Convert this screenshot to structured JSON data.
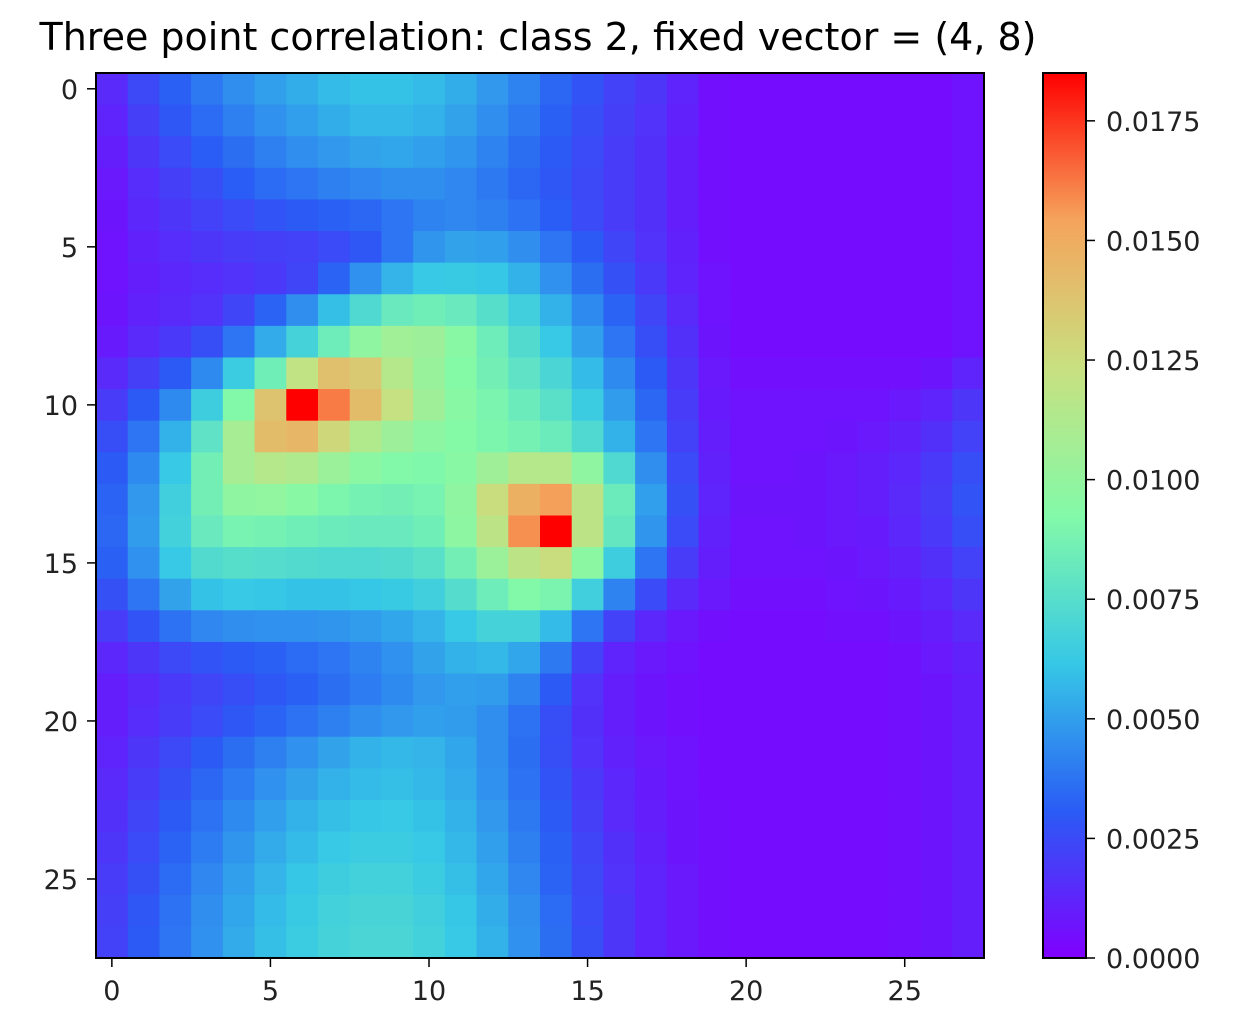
{
  "chart_data": {
    "type": "heatmap",
    "title": "Three point correlation: class 2, fixed vector = (4, 8)",
    "xlabel": "",
    "ylabel": "",
    "rows": 28,
    "cols": 28,
    "xlim": [
      -0.5,
      27.5
    ],
    "ylim": [
      27.5,
      -0.5
    ],
    "x_ticks": [
      0,
      5,
      10,
      15,
      20,
      25
    ],
    "y_ticks": [
      0,
      5,
      10,
      15,
      20,
      25
    ],
    "colormap": "rainbow",
    "colormap_stops": [
      "#8000ff",
      "#2a5cf5",
      "#36c8e6",
      "#83faa8",
      "#c8e080",
      "#f5a45c",
      "#ff0000"
    ],
    "value_range": [
      0,
      0.0185
    ],
    "colorbar": {
      "ticks": [
        0.0,
        0.0025,
        0.005,
        0.0075,
        0.01,
        0.0125,
        0.015,
        0.0175
      ],
      "tick_labels": [
        "0.0000",
        "0.0025",
        "0.0050",
        "0.0075",
        "0.0100",
        "0.0125",
        "0.0150",
        "0.0175"
      ]
    },
    "values": [
      [
        0.0014,
        0.0024,
        0.0032,
        0.0039,
        0.0045,
        0.005,
        0.0054,
        0.0058,
        0.006,
        0.006,
        0.0058,
        0.0054,
        0.0048,
        0.0042,
        0.0034,
        0.0028,
        0.0022,
        0.0018,
        0.0012,
        0.0005,
        0.0004,
        0.0004,
        0.0004,
        0.0004,
        0.0004,
        0.0004,
        0.0004,
        0.0006
      ],
      [
        0.0012,
        0.0021,
        0.0029,
        0.0035,
        0.0041,
        0.0046,
        0.005,
        0.0054,
        0.0057,
        0.0057,
        0.0055,
        0.0051,
        0.0045,
        0.0039,
        0.0032,
        0.0026,
        0.0021,
        0.0017,
        0.0011,
        0.0005,
        0.0004,
        0.0004,
        0.0004,
        0.0004,
        0.0004,
        0.0004,
        0.0004,
        0.0006
      ],
      [
        0.001,
        0.0018,
        0.0025,
        0.0031,
        0.0036,
        0.0041,
        0.0045,
        0.0048,
        0.0051,
        0.0052,
        0.005,
        0.0047,
        0.0042,
        0.0036,
        0.003,
        0.0025,
        0.002,
        0.0016,
        0.001,
        0.0005,
        0.0004,
        0.0004,
        0.0004,
        0.0004,
        0.0004,
        0.0004,
        0.0004,
        0.0006
      ],
      [
        0.0008,
        0.0015,
        0.0021,
        0.0026,
        0.0031,
        0.0035,
        0.0038,
        0.0041,
        0.0043,
        0.0045,
        0.0045,
        0.0043,
        0.0039,
        0.0034,
        0.0029,
        0.0024,
        0.002,
        0.0016,
        0.001,
        0.0005,
        0.0004,
        0.0004,
        0.0004,
        0.0004,
        0.0004,
        0.0004,
        0.0004,
        0.0006
      ],
      [
        0.0007,
        0.0013,
        0.0018,
        0.0022,
        0.0025,
        0.0028,
        0.003,
        0.0032,
        0.0034,
        0.0038,
        0.0042,
        0.0043,
        0.0041,
        0.0037,
        0.0031,
        0.0025,
        0.002,
        0.0016,
        0.001,
        0.0005,
        0.0004,
        0.0004,
        0.0004,
        0.0004,
        0.0004,
        0.0004,
        0.0004,
        0.0006
      ],
      [
        0.0006,
        0.0011,
        0.0015,
        0.0018,
        0.002,
        0.0021,
        0.0022,
        0.0025,
        0.0029,
        0.0038,
        0.0047,
        0.0051,
        0.005,
        0.0045,
        0.0038,
        0.003,
        0.0023,
        0.0017,
        0.0011,
        0.0005,
        0.0004,
        0.0004,
        0.0004,
        0.0004,
        0.0004,
        0.0004,
        0.0004,
        0.0006
      ],
      [
        0.0006,
        0.001,
        0.0013,
        0.0015,
        0.0017,
        0.0019,
        0.0023,
        0.0033,
        0.0046,
        0.0056,
        0.0062,
        0.0063,
        0.0061,
        0.0055,
        0.0046,
        0.0036,
        0.0027,
        0.0019,
        0.0012,
        0.0006,
        0.0004,
        0.0004,
        0.0004,
        0.0004,
        0.0004,
        0.0004,
        0.0004,
        0.0006
      ],
      [
        0.0007,
        0.0011,
        0.0014,
        0.0017,
        0.0023,
        0.0033,
        0.0045,
        0.0059,
        0.0072,
        0.0082,
        0.0085,
        0.0082,
        0.0075,
        0.0066,
        0.0055,
        0.0044,
        0.0033,
        0.0023,
        0.0014,
        0.0006,
        0.0004,
        0.0004,
        0.0004,
        0.0004,
        0.0004,
        0.0004,
        0.0004,
        0.0006
      ],
      [
        0.0009,
        0.0014,
        0.0019,
        0.0026,
        0.0038,
        0.0053,
        0.0068,
        0.0084,
        0.0098,
        0.0106,
        0.0104,
        0.0095,
        0.0084,
        0.0073,
        0.0062,
        0.005,
        0.0038,
        0.0026,
        0.0016,
        0.0007,
        0.0004,
        0.0004,
        0.0004,
        0.0004,
        0.0004,
        0.0004,
        0.0004,
        0.0006
      ],
      [
        0.0014,
        0.0021,
        0.003,
        0.0044,
        0.0064,
        0.0085,
        0.012,
        0.014,
        0.0135,
        0.0115,
        0.0102,
        0.0093,
        0.0086,
        0.0078,
        0.007,
        0.0058,
        0.0044,
        0.003,
        0.0018,
        0.0008,
        0.0005,
        0.0005,
        0.0005,
        0.0005,
        0.0005,
        0.0005,
        0.0007,
        0.0012
      ],
      [
        0.002,
        0.003,
        0.0044,
        0.0065,
        0.0092,
        0.0138,
        0.0185,
        0.0162,
        0.0142,
        0.0122,
        0.0105,
        0.0095,
        0.0089,
        0.0083,
        0.0076,
        0.0064,
        0.0049,
        0.0034,
        0.002,
        0.0009,
        0.0006,
        0.0006,
        0.0006,
        0.0006,
        0.0006,
        0.0008,
        0.0012,
        0.0018
      ],
      [
        0.0026,
        0.0038,
        0.0055,
        0.0078,
        0.0108,
        0.0142,
        0.0145,
        0.0128,
        0.0113,
        0.0104,
        0.0097,
        0.0093,
        0.009,
        0.0087,
        0.0083,
        0.0072,
        0.0055,
        0.0038,
        0.0022,
        0.001,
        0.0006,
        0.0006,
        0.0006,
        0.0007,
        0.0008,
        0.0011,
        0.0016,
        0.0022
      ],
      [
        0.003,
        0.0044,
        0.0062,
        0.0086,
        0.0108,
        0.0115,
        0.0112,
        0.0103,
        0.0096,
        0.0092,
        0.0091,
        0.0095,
        0.0105,
        0.0115,
        0.0115,
        0.0098,
        0.0072,
        0.0045,
        0.0025,
        0.0011,
        0.0006,
        0.0006,
        0.0007,
        0.0008,
        0.001,
        0.0013,
        0.0019,
        0.0026
      ],
      [
        0.0033,
        0.0048,
        0.0066,
        0.0086,
        0.0098,
        0.0099,
        0.0095,
        0.009,
        0.0087,
        0.0086,
        0.0088,
        0.0098,
        0.0125,
        0.0148,
        0.0155,
        0.0118,
        0.0083,
        0.005,
        0.0027,
        0.0012,
        0.0007,
        0.0007,
        0.0007,
        0.0008,
        0.001,
        0.0014,
        0.002,
        0.0028
      ],
      [
        0.0034,
        0.0049,
        0.0067,
        0.0082,
        0.0088,
        0.0087,
        0.0085,
        0.0083,
        0.0082,
        0.0082,
        0.0085,
        0.0097,
        0.0118,
        0.0158,
        0.0185,
        0.0118,
        0.008,
        0.0047,
        0.0025,
        0.0011,
        0.0006,
        0.0006,
        0.0007,
        0.0008,
        0.0009,
        0.0013,
        0.0019,
        0.0026
      ],
      [
        0.0032,
        0.0046,
        0.0062,
        0.0073,
        0.0075,
        0.0074,
        0.0073,
        0.0072,
        0.0072,
        0.0073,
        0.0076,
        0.0086,
        0.0103,
        0.0118,
        0.0125,
        0.0096,
        0.0065,
        0.0038,
        0.002,
        0.001,
        0.0006,
        0.0006,
        0.0006,
        0.0007,
        0.0008,
        0.0011,
        0.0016,
        0.0022
      ],
      [
        0.0027,
        0.0038,
        0.0051,
        0.006,
        0.0062,
        0.0061,
        0.006,
        0.006,
        0.0061,
        0.0063,
        0.0066,
        0.0074,
        0.0084,
        0.0092,
        0.0089,
        0.0066,
        0.0042,
        0.0025,
        0.0014,
        0.0008,
        0.0005,
        0.0005,
        0.0005,
        0.0006,
        0.0007,
        0.0009,
        0.0013,
        0.0018
      ],
      [
        0.002,
        0.0028,
        0.0037,
        0.0043,
        0.0045,
        0.0046,
        0.0046,
        0.0047,
        0.0049,
        0.0052,
        0.0056,
        0.0062,
        0.0068,
        0.0068,
        0.0058,
        0.0038,
        0.0022,
        0.0013,
        0.0008,
        0.0005,
        0.0004,
        0.0004,
        0.0004,
        0.0005,
        0.0005,
        0.0007,
        0.001,
        0.0014
      ],
      [
        0.0013,
        0.0018,
        0.0024,
        0.0028,
        0.003,
        0.0032,
        0.0035,
        0.0038,
        0.0042,
        0.0046,
        0.0051,
        0.0055,
        0.0057,
        0.0052,
        0.0039,
        0.0022,
        0.0012,
        0.0008,
        0.0006,
        0.0004,
        0.0004,
        0.0004,
        0.0004,
        0.0004,
        0.0004,
        0.0005,
        0.0008,
        0.0011
      ],
      [
        0.001,
        0.0014,
        0.0019,
        0.0023,
        0.0026,
        0.0029,
        0.0032,
        0.0036,
        0.004,
        0.0044,
        0.0048,
        0.005,
        0.0049,
        0.0042,
        0.003,
        0.0017,
        0.001,
        0.0007,
        0.0005,
        0.0004,
        0.0004,
        0.0004,
        0.0004,
        0.0004,
        0.0004,
        0.0005,
        0.0007,
        0.001
      ],
      [
        0.001,
        0.0015,
        0.002,
        0.0025,
        0.0029,
        0.0033,
        0.0037,
        0.0041,
        0.0045,
        0.0048,
        0.005,
        0.0049,
        0.0045,
        0.0037,
        0.0026,
        0.0016,
        0.001,
        0.0007,
        0.0005,
        0.0004,
        0.0004,
        0.0004,
        0.0004,
        0.0004,
        0.0004,
        0.0005,
        0.0007,
        0.001
      ],
      [
        0.0012,
        0.0018,
        0.0024,
        0.003,
        0.0036,
        0.0041,
        0.0046,
        0.0051,
        0.0055,
        0.0057,
        0.0056,
        0.0052,
        0.0045,
        0.0036,
        0.0026,
        0.0017,
        0.0011,
        0.0008,
        0.0006,
        0.0004,
        0.0004,
        0.0004,
        0.0004,
        0.0004,
        0.0004,
        0.0005,
        0.0007,
        0.001
      ],
      [
        0.0014,
        0.002,
        0.0027,
        0.0034,
        0.004,
        0.0046,
        0.0051,
        0.0055,
        0.0058,
        0.0059,
        0.0057,
        0.0053,
        0.0046,
        0.0037,
        0.0028,
        0.0019,
        0.0013,
        0.0009,
        0.0006,
        0.0004,
        0.0004,
        0.0004,
        0.0004,
        0.0004,
        0.0004,
        0.0005,
        0.0007,
        0.001
      ],
      [
        0.0016,
        0.0023,
        0.003,
        0.0037,
        0.0044,
        0.005,
        0.0055,
        0.0059,
        0.0061,
        0.0062,
        0.006,
        0.0055,
        0.0048,
        0.0039,
        0.003,
        0.0021,
        0.0014,
        0.001,
        0.0007,
        0.0005,
        0.0004,
        0.0004,
        0.0004,
        0.0004,
        0.0004,
        0.0005,
        0.0007,
        0.001
      ],
      [
        0.0018,
        0.0025,
        0.0033,
        0.004,
        0.0047,
        0.0053,
        0.0058,
        0.0062,
        0.0064,
        0.0064,
        0.0062,
        0.0057,
        0.005,
        0.0041,
        0.0032,
        0.0023,
        0.0016,
        0.0011,
        0.0007,
        0.0005,
        0.0004,
        0.0004,
        0.0004,
        0.0004,
        0.0004,
        0.0005,
        0.0007,
        0.001
      ],
      [
        0.002,
        0.0027,
        0.0035,
        0.0043,
        0.005,
        0.0056,
        0.0061,
        0.0065,
        0.0067,
        0.0067,
        0.0064,
        0.0059,
        0.0052,
        0.0043,
        0.0033,
        0.0024,
        0.0017,
        0.0012,
        0.0008,
        0.0005,
        0.0004,
        0.0004,
        0.0004,
        0.0004,
        0.0004,
        0.0005,
        0.0007,
        0.001
      ],
      [
        0.0021,
        0.0029,
        0.0037,
        0.0045,
        0.0052,
        0.0058,
        0.0063,
        0.0067,
        0.0069,
        0.0069,
        0.0066,
        0.0061,
        0.0054,
        0.0045,
        0.0035,
        0.0025,
        0.0018,
        0.0012,
        0.0008,
        0.0005,
        0.0004,
        0.0004,
        0.0004,
        0.0004,
        0.0004,
        0.0005,
        0.0007,
        0.001
      ],
      [
        0.0022,
        0.003,
        0.0038,
        0.0046,
        0.0053,
        0.0059,
        0.0064,
        0.0068,
        0.007,
        0.007,
        0.0067,
        0.0062,
        0.0055,
        0.0046,
        0.0036,
        0.0026,
        0.0018,
        0.0012,
        0.0008,
        0.0005,
        0.0004,
        0.0004,
        0.0004,
        0.0004,
        0.0004,
        0.0005,
        0.0007,
        0.001
      ]
    ]
  }
}
